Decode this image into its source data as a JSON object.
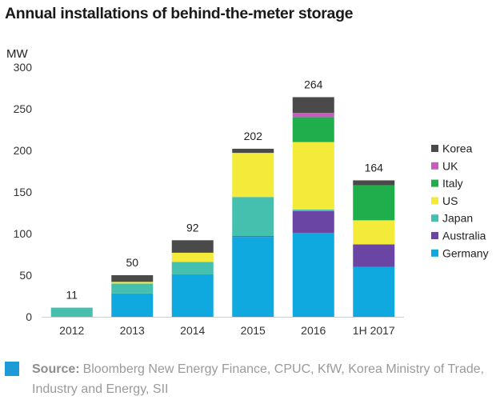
{
  "title": "Annual installations of behind-the-meter storage",
  "source": {
    "label": "Source:",
    "text": "Bloomberg New Energy Finance, CPUC, KfW, Korea Ministry of Trade, Industry and Energy, SII"
  },
  "chart_data": {
    "type": "bar",
    "stacked": true,
    "title": "",
    "ylabel": "MW",
    "xlabel": "",
    "ylim": [
      0,
      300
    ],
    "yticks": [
      0,
      50,
      100,
      150,
      200,
      250,
      300
    ],
    "grid": false,
    "legend_position": "right",
    "categories": [
      "2012",
      "2013",
      "2014",
      "2015",
      "2016",
      "1H 2017"
    ],
    "totals": [
      11,
      50,
      92,
      202,
      264,
      164
    ],
    "series": [
      {
        "name": "Germany",
        "color": "#0fa9e0",
        "values": [
          0,
          28,
          51,
          96,
          101,
          60
        ]
      },
      {
        "name": "Australia",
        "color": "#6a45a3",
        "values": [
          0,
          0,
          0,
          1,
          26,
          27
        ]
      },
      {
        "name": "Japan",
        "color": "#45bfae",
        "values": [
          11,
          12,
          15,
          47,
          2,
          0
        ]
      },
      {
        "name": "US",
        "color": "#f4ea3a",
        "values": [
          0,
          2,
          11,
          53,
          81,
          29
        ]
      },
      {
        "name": "Italy",
        "color": "#1fae4b",
        "values": [
          0,
          0,
          0,
          0,
          30,
          42
        ]
      },
      {
        "name": "UK",
        "color": "#c75cbf",
        "values": [
          0,
          0,
          0,
          0,
          5,
          0
        ]
      },
      {
        "name": "Korea",
        "color": "#4a4a4a",
        "values": [
          0,
          8,
          15,
          5,
          19,
          6
        ]
      }
    ]
  }
}
